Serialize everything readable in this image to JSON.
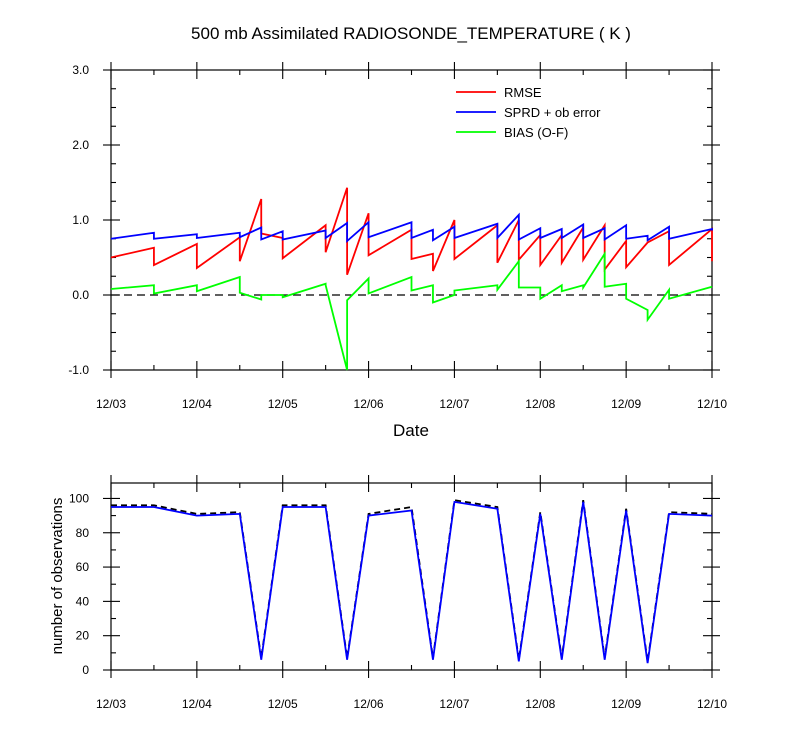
{
  "chart_data": [
    {
      "type": "line",
      "title": "500 mb Assimilated RADIOSONDE_TEMPERATURE ( K )",
      "xlabel": "Date",
      "ylabel": "",
      "xlim": [
        0,
        7
      ],
      "ylim": [
        -1.0,
        3.0
      ],
      "x_tick_labels": [
        "12/03",
        "12/04",
        "12/05",
        "12/06",
        "12/07",
        "12/08",
        "12/09",
        "12/10"
      ],
      "y_tick_labels": [
        "-1.0",
        "0.0",
        "1.0",
        "2.0",
        "3.0"
      ],
      "y_ticks": [
        -1.0,
        0.0,
        1.0,
        2.0,
        3.0
      ],
      "reference_line": 0.0,
      "legend_position": "top-right",
      "series": [
        {
          "name": "RMSE",
          "color": "#ff0000",
          "points": [
            [
              0,
              0.5
            ],
            [
              0.5,
              0.63
            ],
            [
              0.5,
              0.4
            ],
            [
              1.0,
              0.68
            ],
            [
              1.0,
              0.36
            ],
            [
              1.5,
              0.77
            ],
            [
              1.5,
              0.45
            ],
            [
              1.75,
              1.28
            ],
            [
              1.75,
              0.82
            ],
            [
              2.0,
              0.76
            ],
            [
              2.0,
              0.49
            ],
            [
              2.5,
              0.93
            ],
            [
              2.5,
              0.57
            ],
            [
              2.75,
              1.43
            ],
            [
              2.75,
              0.27
            ],
            [
              3.0,
              1.09
            ],
            [
              3.0,
              0.53
            ],
            [
              3.5,
              0.87
            ],
            [
              3.5,
              0.48
            ],
            [
              3.75,
              0.55
            ],
            [
              3.75,
              0.32
            ],
            [
              4.0,
              1.0
            ],
            [
              4.0,
              0.48
            ],
            [
              4.5,
              0.93
            ],
            [
              4.5,
              0.43
            ],
            [
              4.75,
              1.0
            ],
            [
              4.75,
              0.47
            ],
            [
              5.0,
              0.8
            ],
            [
              5.0,
              0.4
            ],
            [
              5.25,
              0.8
            ],
            [
              5.25,
              0.43
            ],
            [
              5.5,
              0.9
            ],
            [
              5.5,
              0.47
            ],
            [
              5.75,
              0.93
            ],
            [
              5.75,
              0.34
            ],
            [
              6.0,
              0.72
            ],
            [
              6.0,
              0.37
            ],
            [
              6.25,
              0.7
            ],
            [
              6.25,
              0.7
            ],
            [
              6.5,
              0.85
            ],
            [
              6.5,
              0.4
            ],
            [
              7.0,
              0.88
            ],
            [
              7.0,
              0.45
            ]
          ]
        },
        {
          "name": "SPRD + ob error",
          "color": "#0000ff",
          "points": [
            [
              0,
              0.75
            ],
            [
              0.5,
              0.83
            ],
            [
              0.5,
              0.75
            ],
            [
              1.0,
              0.81
            ],
            [
              1.0,
              0.76
            ],
            [
              1.5,
              0.83
            ],
            [
              1.5,
              0.77
            ],
            [
              1.75,
              0.9
            ],
            [
              1.75,
              0.74
            ],
            [
              2.0,
              0.85
            ],
            [
              2.0,
              0.74
            ],
            [
              2.5,
              0.86
            ],
            [
              2.5,
              0.76
            ],
            [
              2.75,
              0.96
            ],
            [
              2.75,
              0.72
            ],
            [
              3.0,
              0.97
            ],
            [
              3.0,
              0.77
            ],
            [
              3.5,
              0.97
            ],
            [
              3.5,
              0.76
            ],
            [
              3.75,
              0.87
            ],
            [
              3.75,
              0.73
            ],
            [
              4.0,
              0.91
            ],
            [
              4.0,
              0.76
            ],
            [
              4.5,
              0.95
            ],
            [
              4.5,
              0.76
            ],
            [
              4.75,
              1.07
            ],
            [
              4.75,
              0.74
            ],
            [
              5.0,
              0.89
            ],
            [
              5.0,
              0.76
            ],
            [
              5.25,
              0.88
            ],
            [
              5.25,
              0.76
            ],
            [
              5.5,
              0.94
            ],
            [
              5.5,
              0.76
            ],
            [
              5.75,
              0.89
            ],
            [
              5.75,
              0.74
            ],
            [
              6.0,
              0.93
            ],
            [
              6.0,
              0.75
            ],
            [
              6.25,
              0.79
            ],
            [
              6.25,
              0.73
            ],
            [
              6.5,
              0.91
            ],
            [
              6.5,
              0.75
            ],
            [
              7.0,
              0.88
            ],
            [
              7.0,
              0.86
            ]
          ]
        },
        {
          "name": "BIAS (O-F)",
          "color": "#00ff00",
          "points": [
            [
              0,
              0.08
            ],
            [
              0.5,
              0.13
            ],
            [
              0.5,
              0.02
            ],
            [
              1.0,
              0.13
            ],
            [
              1.0,
              0.05
            ],
            [
              1.5,
              0.24
            ],
            [
              1.5,
              0.03
            ],
            [
              1.75,
              -0.06
            ],
            [
              1.75,
              0.0
            ],
            [
              2.0,
              0.0
            ],
            [
              2.0,
              -0.03
            ],
            [
              2.5,
              0.15
            ],
            [
              2.5,
              0.13
            ],
            [
              2.75,
              -1.0
            ],
            [
              2.75,
              -0.07
            ],
            [
              3.0,
              0.22
            ],
            [
              3.0,
              0.02
            ],
            [
              3.5,
              0.24
            ],
            [
              3.5,
              0.06
            ],
            [
              3.75,
              0.13
            ],
            [
              3.75,
              -0.1
            ],
            [
              4.0,
              0.0
            ],
            [
              4.0,
              0.06
            ],
            [
              4.5,
              0.13
            ],
            [
              4.5,
              0.07
            ],
            [
              4.75,
              0.45
            ],
            [
              4.75,
              0.1
            ],
            [
              5.0,
              0.1
            ],
            [
              5.0,
              -0.05
            ],
            [
              5.25,
              0.13
            ],
            [
              5.25,
              0.05
            ],
            [
              5.5,
              0.13
            ],
            [
              5.5,
              0.1
            ],
            [
              5.75,
              0.55
            ],
            [
              5.75,
              0.11
            ],
            [
              6.0,
              0.15
            ],
            [
              6.0,
              -0.05
            ],
            [
              6.25,
              -0.2
            ],
            [
              6.25,
              -0.33
            ],
            [
              6.5,
              0.07
            ],
            [
              6.5,
              -0.05
            ],
            [
              7.0,
              0.11
            ]
          ]
        }
      ]
    },
    {
      "type": "line",
      "title": "",
      "xlabel": "",
      "ylabel": "number of observations",
      "xlim": [
        0,
        7
      ],
      "ylim": [
        0,
        109
      ],
      "x_tick_labels": [
        "12/03",
        "12/04",
        "12/05",
        "12/06",
        "12/07",
        "12/08",
        "12/09",
        "12/10"
      ],
      "y_tick_labels": [
        "0",
        "20",
        "40",
        "60",
        "80",
        "100"
      ],
      "y_ticks": [
        0,
        20,
        40,
        60,
        80,
        100
      ],
      "series": [
        {
          "color": "#000000",
          "dash": true,
          "points": [
            [
              0,
              96
            ],
            [
              0.5,
              96
            ],
            [
              1.0,
              91
            ],
            [
              1.5,
              92
            ],
            [
              1.75,
              7
            ],
            [
              2.0,
              96
            ],
            [
              2.5,
              96
            ],
            [
              2.75,
              7
            ],
            [
              3.0,
              91
            ],
            [
              3.5,
              95
            ],
            [
              3.75,
              7
            ],
            [
              4.0,
              99
            ],
            [
              4.5,
              95
            ],
            [
              4.75,
              6
            ],
            [
              5.0,
              92
            ],
            [
              5.25,
              7
            ],
            [
              5.5,
              99
            ],
            [
              5.75,
              7
            ],
            [
              6.0,
              94
            ],
            [
              6.25,
              5
            ],
            [
              6.5,
              92
            ],
            [
              7.0,
              91
            ]
          ]
        },
        {
          "color": "#0000ff",
          "dash": false,
          "points": [
            [
              0,
              95
            ],
            [
              0.5,
              95
            ],
            [
              1.0,
              90
            ],
            [
              1.5,
              91
            ],
            [
              1.75,
              6
            ],
            [
              2.0,
              95
            ],
            [
              2.5,
              95
            ],
            [
              2.75,
              6
            ],
            [
              3.0,
              90
            ],
            [
              3.5,
              93
            ],
            [
              3.75,
              6
            ],
            [
              4.0,
              98
            ],
            [
              4.5,
              94
            ],
            [
              4.75,
              5
            ],
            [
              5.0,
              91
            ],
            [
              5.25,
              6
            ],
            [
              5.5,
              98
            ],
            [
              5.75,
              6
            ],
            [
              6.0,
              93
            ],
            [
              6.25,
              4
            ],
            [
              6.5,
              91
            ],
            [
              7.0,
              90
            ]
          ]
        }
      ]
    }
  ]
}
